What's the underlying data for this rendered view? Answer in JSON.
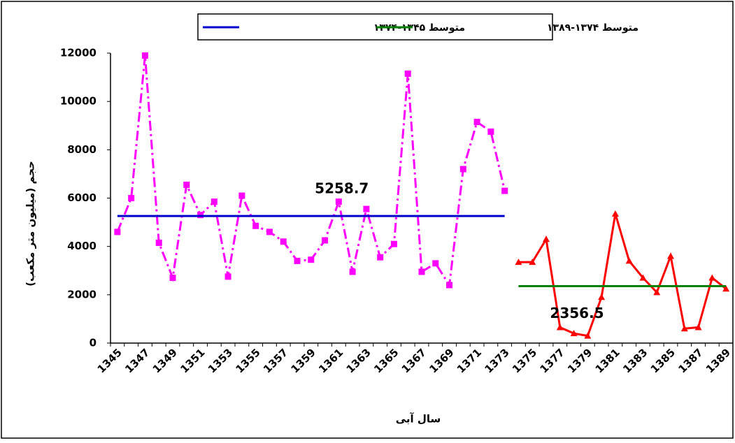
{
  "chart_data": {
    "type": "line",
    "y_label": "حجم (میلیون متر مکعب)",
    "x_label": "سال آبی",
    "categories": [
      "1345",
      null,
      "1347",
      null,
      "1349",
      null,
      "1351",
      null,
      "1353",
      null,
      "1355",
      null,
      "1357",
      null,
      "1359",
      null,
      "1361",
      null,
      "1363",
      null,
      "1365",
      null,
      "1367",
      null,
      "1369",
      null,
      "1371",
      null,
      "1373",
      null,
      "1375",
      null,
      "1377",
      null,
      "1379",
      null,
      "1381",
      null,
      "1383",
      null,
      "1385",
      null,
      "1387",
      null,
      "1389"
    ],
    "ylim": [
      0,
      12000
    ],
    "yticks": [
      0,
      2000,
      4000,
      6000,
      8000,
      10000,
      12000
    ],
    "series": [
      {
        "color": "#ff00ff",
        "marker": "square",
        "dash": "dashdot",
        "values": [
          4600,
          6000,
          11900,
          4150,
          2700,
          6550,
          5300,
          5850,
          2750,
          6100,
          4850,
          4600,
          4200,
          3400,
          3450,
          4250,
          5850,
          2950,
          5550,
          3550,
          4100,
          11150,
          2950,
          3300,
          2400,
          7200,
          9150,
          8750,
          6300,
          null,
          null,
          null,
          null,
          null,
          null,
          null,
          null,
          null,
          null,
          null,
          null,
          null,
          null,
          null,
          null
        ]
      },
      {
        "color": "#ff0000",
        "marker": "triangle",
        "dash": "solid",
        "values": [
          null,
          null,
          null,
          null,
          null,
          null,
          null,
          null,
          null,
          null,
          null,
          null,
          null,
          null,
          null,
          null,
          null,
          null,
          null,
          null,
          null,
          null,
          null,
          null,
          null,
          null,
          null,
          null,
          null,
          3350,
          3350,
          4300,
          650,
          400,
          300,
          1900,
          5350,
          3400,
          2700,
          2100,
          3600,
          600,
          650,
          2700,
          2250
        ]
      },
      {
        "name": "متوسط ۱۳۴۵-۱۳۷۴",
        "color": "#0000cc",
        "marker": "none",
        "dash": "solid",
        "label_index": 14,
        "values": [
          5258.7,
          5258.7,
          5258.7,
          5258.7,
          5258.7,
          5258.7,
          5258.7,
          5258.7,
          5258.7,
          5258.7,
          5258.7,
          5258.7,
          5258.7,
          5258.7,
          5258.7,
          5258.7,
          5258.7,
          5258.7,
          5258.7,
          5258.7,
          5258.7,
          5258.7,
          5258.7,
          5258.7,
          5258.7,
          5258.7,
          5258.7,
          5258.7,
          5258.7,
          null,
          null,
          null,
          null,
          null,
          null,
          null,
          null,
          null,
          null,
          null,
          null,
          null,
          null,
          null,
          null
        ]
      },
      {
        "name": "متوسط ۱۳۷۴-۱۳۸۹",
        "color": "#008000",
        "marker": "none",
        "dash": "solid",
        "label_index": 31,
        "values": [
          null,
          null,
          null,
          null,
          null,
          null,
          null,
          null,
          null,
          null,
          null,
          null,
          null,
          null,
          null,
          null,
          null,
          null,
          null,
          null,
          null,
          null,
          null,
          null,
          null,
          null,
          null,
          null,
          null,
          2356.5,
          2356.5,
          2356.5,
          2356.5,
          2356.5,
          2356.5,
          2356.5,
          2356.5,
          2356.5,
          2356.5,
          2356.5,
          2356.5,
          2356.5,
          2356.5,
          2356.5,
          2356.5
        ]
      }
    ]
  }
}
